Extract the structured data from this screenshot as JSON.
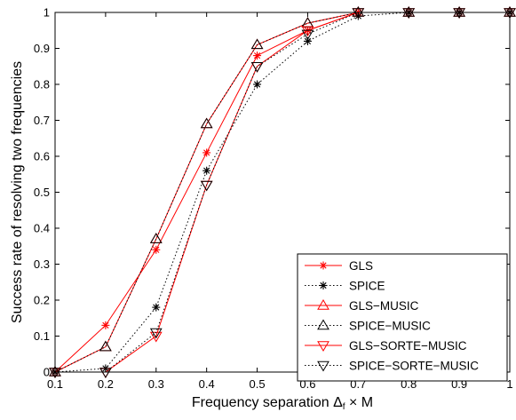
{
  "chart_data": {
    "type": "line",
    "title": "",
    "xlabel": "Frequency separation Δf × M",
    "xlabel_parts": {
      "prefix": "Frequency separation ",
      "delta": "Δ",
      "sub": "f",
      "suffix": " × M"
    },
    "ylabel": "Success rate of resolving two frequencies",
    "xlim": [
      0.1,
      1
    ],
    "ylim": [
      0,
      1
    ],
    "x_ticks": [
      "0.1",
      "0.2",
      "0.3",
      "0.4",
      "0.5",
      "0.6",
      "0.7",
      "0.8",
      "0.9",
      "1"
    ],
    "y_ticks": [
      "0",
      "0.1",
      "0.2",
      "0.3",
      "0.4",
      "0.5",
      "0.6",
      "0.7",
      "0.8",
      "0.9",
      "1"
    ],
    "grid": false,
    "legend_position": "bottom-right",
    "x": [
      0.1,
      0.2,
      0.3,
      0.4,
      0.5,
      0.6,
      0.7,
      0.8,
      0.9,
      1.0
    ],
    "series": [
      {
        "name": "GLS",
        "color": "#ff0000",
        "line": "solid",
        "marker": "star",
        "values": [
          0,
          0.13,
          0.34,
          0.61,
          0.88,
          0.95,
          1,
          1,
          1,
          1
        ]
      },
      {
        "name": "SPICE",
        "color": "#000000",
        "line": "dotted",
        "marker": "star",
        "values": [
          0,
          0.01,
          0.18,
          0.56,
          0.8,
          0.92,
          0.99,
          1,
          1,
          1
        ]
      },
      {
        "name": "GLS−MUSIC",
        "color": "#ff0000",
        "line": "solid",
        "marker": "triangle-up",
        "values": [
          0,
          0.07,
          0.37,
          0.69,
          0.91,
          0.97,
          1,
          1,
          1,
          1
        ]
      },
      {
        "name": "SPICE−MUSIC",
        "color": "#000000",
        "line": "dotted",
        "marker": "triangle-up",
        "values": [
          0,
          0.07,
          0.37,
          0.69,
          0.91,
          0.97,
          1,
          1,
          1,
          1
        ]
      },
      {
        "name": "GLS−SORTE−MUSIC",
        "color": "#ff0000",
        "line": "solid",
        "marker": "triangle-down",
        "values": [
          0,
          0.0,
          0.1,
          0.52,
          0.85,
          0.95,
          1,
          1,
          1,
          1
        ]
      },
      {
        "name": "SPICE−SORTE−MUSIC",
        "color": "#000000",
        "line": "dotted",
        "marker": "triangle-down",
        "values": [
          0,
          0.0,
          0.11,
          0.52,
          0.85,
          0.94,
          1,
          1,
          1,
          1
        ]
      }
    ]
  }
}
